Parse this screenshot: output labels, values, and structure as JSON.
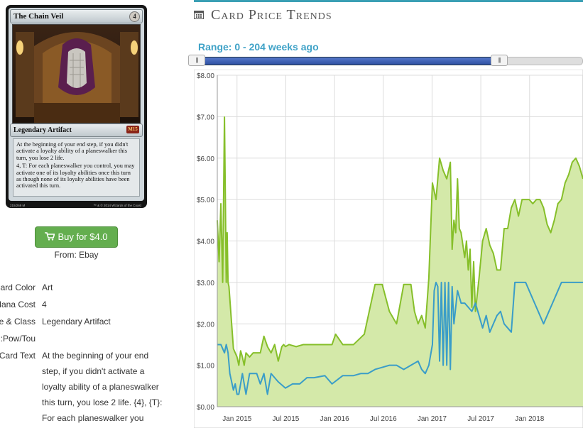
{
  "card": {
    "name": "The Chain Veil",
    "mana_cost": "4",
    "type_line": "Legendary Artifact",
    "set_symbol": "M15",
    "rules_text_1": "At the beginning of your end step, if you didn't activate a loyalty ability of a planeswalker this turn, you lose 2 life.",
    "rules_text_2": "4, T: For each planeswalker you control, you may activate one of its loyalty abilities once this turn as though none of its loyalty abilities have been activated this turn.",
    "collector_number": "215/269 M",
    "copyright": "™ & © 2014 Wizards of the Coast"
  },
  "buy": {
    "label": "Buy for $4.0",
    "from": "From: Ebay"
  },
  "attributes": {
    "color_label": "Card Color:",
    "color_value": "Art",
    "cost_label": "Mana Cost",
    "cost_value": "4",
    "type_label": "Type & Class:",
    "type_value": "Legendary Artifact",
    "pt_label": "Pow/Tou:",
    "text_label": "Card Text:",
    "text_lines": [
      "At the beginning of your end",
      "step, if you didn't activate a",
      "loyalty ability of a planeswalker",
      "this turn, you lose 2 life. {4}, {T}:",
      "For each planeswalker you"
    ]
  },
  "price_section": {
    "title": "Card Price Trends",
    "range_label": "Range: 0 - 204 weeks ago",
    "slider_left_grip": "|||",
    "slider_right_grip": "|||"
  },
  "chart_data": {
    "type": "area",
    "x_ticks": [
      "Jan 2015",
      "Jul 2015",
      "Jan 2016",
      "Jul 2016",
      "Jan 2017",
      "Jul 2017",
      "Jan 2018"
    ],
    "y_ticks": [
      "$0.00",
      "$1.00",
      "$2.00",
      "$3.00",
      "$4.00",
      "$5.00",
      "$6.00",
      "$7.00",
      "$8.00"
    ],
    "ylim": [
      0,
      8
    ],
    "xlim": [
      0,
      204
    ],
    "grid": true,
    "colors": {
      "series_a_line": "#86bf2a",
      "series_a_fill": "#d4e9a9",
      "series_b_line": "#3a9dc8",
      "grid": "#dcdcdc"
    },
    "series": [
      {
        "x": [
          0,
          1,
          2,
          3,
          4,
          5,
          5.5,
          6,
          6.5,
          7,
          8,
          9,
          10,
          11,
          12,
          13,
          14,
          15,
          16,
          18,
          20,
          24,
          26,
          28,
          30,
          32,
          34,
          36,
          37,
          38,
          40,
          44,
          48,
          52,
          56,
          60,
          64,
          66,
          70,
          76,
          82,
          88,
          92,
          96,
          100,
          104,
          108,
          110,
          112,
          114,
          116,
          118,
          120,
          122,
          124,
          126,
          128,
          130,
          131,
          132,
          133,
          134,
          135,
          136,
          137,
          138,
          139,
          140,
          141,
          142,
          143,
          144,
          146,
          148,
          150,
          152,
          154,
          156,
          158,
          160,
          162,
          164,
          166,
          168,
          170,
          172,
          174,
          176,
          178,
          180,
          182,
          184,
          186,
          188,
          190,
          192,
          194,
          196,
          198,
          200,
          202,
          204
        ],
        "values": [
          4.5,
          3.5,
          4.9,
          3.0,
          6.99,
          3.0,
          4.2,
          3.0,
          2.9,
          2.6,
          2.0,
          1.4,
          1.3,
          1.2,
          1.0,
          1.35,
          1.2,
          1.0,
          1.3,
          1.2,
          1.3,
          1.3,
          1.7,
          1.45,
          1.3,
          1.5,
          1.1,
          1.45,
          1.5,
          1.45,
          1.5,
          1.45,
          1.5,
          1.5,
          1.5,
          1.5,
          1.5,
          1.75,
          1.5,
          1.5,
          1.75,
          2.95,
          2.95,
          2.3,
          2.0,
          2.95,
          2.95,
          2.3,
          2.0,
          2.2,
          1.9,
          3.1,
          5.4,
          5.0,
          6.0,
          5.7,
          5.5,
          5.9,
          3.8,
          4.5,
          4.2,
          5.5,
          4.3,
          4.2,
          3.9,
          3.6,
          4.0,
          3.3,
          3.8,
          2.4,
          3.5,
          2.3,
          3.1,
          4.0,
          4.3,
          3.9,
          3.7,
          3.3,
          3.3,
          4.3,
          4.3,
          4.8,
          5.0,
          4.6,
          5.0,
          5.0,
          5.0,
          4.9,
          5.0,
          5.0,
          4.8,
          4.4,
          4.2,
          4.5,
          4.9,
          5.0,
          5.4,
          5.6,
          5.9,
          6.0,
          5.8,
          5.5
        ]
      },
      {
        "x": [
          0,
          2,
          4,
          5,
          6,
          7,
          8,
          9,
          10,
          11,
          12,
          14,
          16,
          18,
          20,
          22,
          24,
          26,
          28,
          30,
          34,
          38,
          42,
          46,
          50,
          54,
          60,
          64,
          70,
          76,
          80,
          84,
          88,
          92,
          96,
          100,
          104,
          108,
          112,
          114,
          116,
          118,
          120,
          121,
          122,
          123,
          124,
          125,
          126,
          127,
          128,
          129,
          130,
          131,
          132,
          134,
          136,
          138,
          140,
          142,
          144,
          146,
          148,
          150,
          152,
          154,
          156,
          158,
          160,
          162,
          164,
          166,
          168,
          170,
          172,
          174,
          176,
          178,
          180,
          182,
          184,
          186,
          188,
          190,
          192,
          194,
          196,
          198,
          200,
          202,
          204
        ],
        "values": [
          1.5,
          1.5,
          1.3,
          1.5,
          1.3,
          0.8,
          0.6,
          0.4,
          0.55,
          0.3,
          0.3,
          0.8,
          0.3,
          0.8,
          0.8,
          0.8,
          0.55,
          0.8,
          0.3,
          0.8,
          0.6,
          0.45,
          0.55,
          0.55,
          0.7,
          0.7,
          0.75,
          0.55,
          0.75,
          0.75,
          0.8,
          0.8,
          0.9,
          0.95,
          1.0,
          1.0,
          0.9,
          1.0,
          1.1,
          0.9,
          0.8,
          1.0,
          1.5,
          2.8,
          3.0,
          2.9,
          1.1,
          3.0,
          1.0,
          3.0,
          1.0,
          3.0,
          0.9,
          2.9,
          2.0,
          2.8,
          2.5,
          2.5,
          2.4,
          2.3,
          2.5,
          2.2,
          1.9,
          2.2,
          1.8,
          2.0,
          2.2,
          2.3,
          2.0,
          1.9,
          1.8,
          3.0,
          3.0,
          3.0,
          3.0,
          2.8,
          2.6,
          2.4,
          2.2,
          2.0,
          2.2,
          2.4,
          2.6,
          2.8,
          3.0,
          3.0,
          3.0,
          3.0,
          3.0,
          3.0,
          3.0
        ]
      }
    ]
  }
}
